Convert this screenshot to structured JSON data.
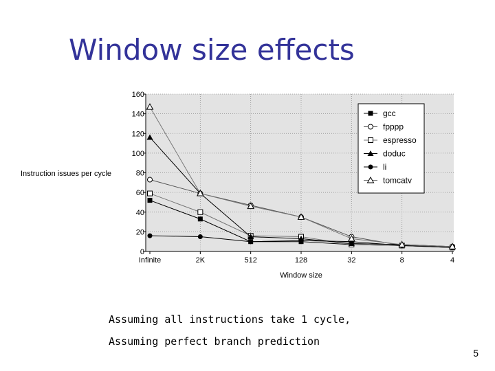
{
  "slide": {
    "title": "Window size effects",
    "notes": [
      "Assuming all instructions take 1 cycle,",
      "Assuming perfect branch prediction"
    ],
    "page_number": "5"
  },
  "chart_data": {
    "type": "line",
    "title": "",
    "xlabel": "Window size",
    "ylabel": "Instruction issues per cycle",
    "categories": [
      "Infinite",
      "2K",
      "512",
      "128",
      "32",
      "8",
      "4"
    ],
    "ylim": [
      0,
      160
    ],
    "yticks": [
      0,
      20,
      40,
      60,
      80,
      100,
      120,
      140,
      160
    ],
    "grid": true,
    "legend_position": "top-right",
    "series": [
      {
        "name": "gcc",
        "marker": "filled-square",
        "color": "#000000",
        "values": [
          52,
          33,
          10,
          10,
          7,
          6,
          4
        ]
      },
      {
        "name": "fpppp",
        "marker": "open-circle",
        "color": "#555555",
        "values": [
          73,
          59,
          47,
          35,
          15,
          6,
          5
        ]
      },
      {
        "name": "espresso",
        "marker": "open-square",
        "color": "#777777",
        "values": [
          59,
          40,
          16,
          15,
          7,
          6,
          4
        ]
      },
      {
        "name": "doduc",
        "marker": "filled-triangle",
        "color": "#000000",
        "values": [
          116,
          59,
          15,
          13,
          8,
          7,
          5
        ]
      },
      {
        "name": "li",
        "marker": "filled-circle",
        "color": "#000000",
        "values": [
          16,
          15,
          10,
          11,
          10,
          6,
          4
        ]
      },
      {
        "name": "tomcatv",
        "marker": "open-triangle",
        "color": "#777777",
        "values": [
          147,
          59,
          46,
          35,
          13,
          7,
          5
        ]
      }
    ]
  }
}
